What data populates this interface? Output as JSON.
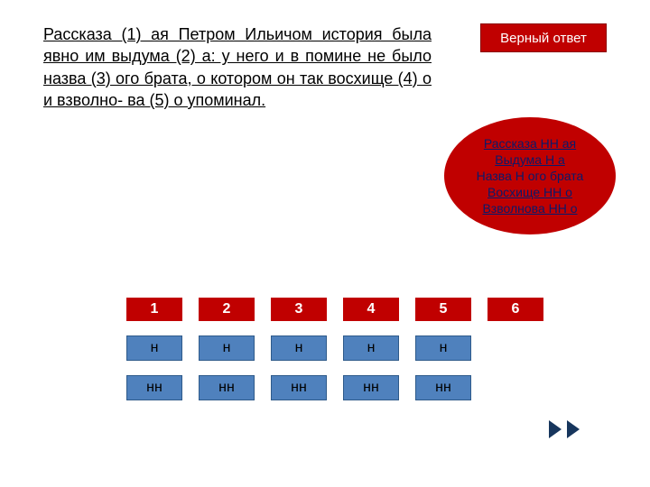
{
  "question": "Рассказа (1) ая Петром Ильичом история была явно им выдума (2) а: у него и в помине не было назва (3) ого брата, о котором он так восхище (4) о и взволно-\nва (5) о упоминал.",
  "answer_btn": "Верный ответ",
  "bubble": {
    "lines": [
      {
        "text": "Рассказа НН ая",
        "style": "u"
      },
      {
        "text": "Выдума Н а",
        "style": "u"
      },
      {
        "text": "Назва Н ого брата",
        "style": "plain"
      },
      {
        "text": "Восхище НН о",
        "style": "u"
      },
      {
        "text": "Взволнова НН о",
        "style": "u"
      }
    ]
  },
  "columns": [
    "1",
    "2",
    "3",
    "4",
    "5",
    "6"
  ],
  "row_n": [
    "н",
    "н",
    "н",
    "н",
    "н",
    ""
  ],
  "row_nn": [
    "нн",
    "нн",
    "нн",
    "нн",
    "нн",
    ""
  ],
  "colors": {
    "accent": "#c00000",
    "cell": "#4f81bd",
    "nav": "#17365d"
  }
}
